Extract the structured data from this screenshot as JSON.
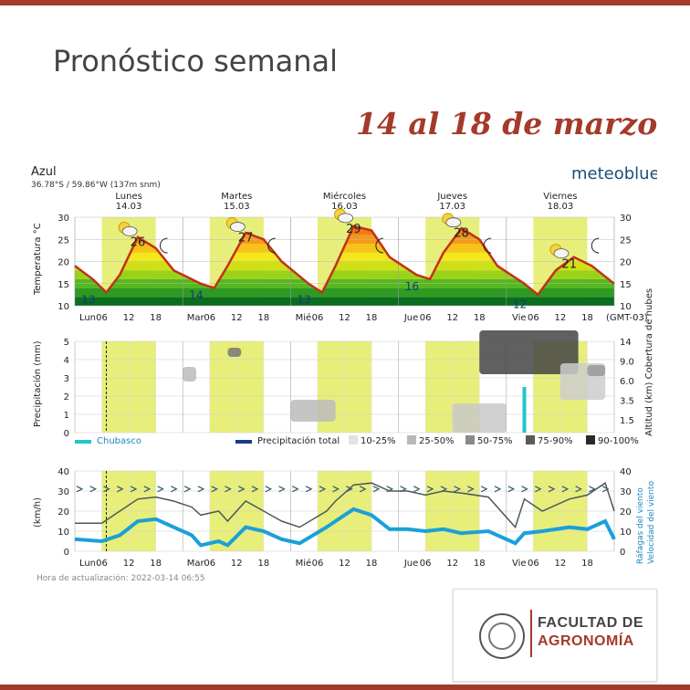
{
  "header": {
    "title": "Pronóstico semanal",
    "subtitle": "14 al 18 de marzo"
  },
  "meteogram": {
    "location": "Azul",
    "coords": "36.78°S / 59.86°W (137m snm)",
    "brand": "meteoblue",
    "timezone": "(GMT-03)",
    "update": "Hora de actualización: 2022-03-14 06:55",
    "temp_ylabel": "Temperatura °C",
    "precip_ylabel": "Precipitación (mm)",
    "cloud_ylabel": "Altitud (km) Cobertura de nubes",
    "wind_ylabel": "(km/h)",
    "wind_right_label1": "Ráfagas del viento",
    "wind_right_label2": "Velocidad del viento",
    "legend": {
      "shower": "Chubasco",
      "total": "Precipitación total",
      "c1": "10-25%",
      "c2": "25-50%",
      "c3": "50-75%",
      "c4": "75-90%",
      "c5": "90-100%"
    },
    "x_tick_labels": [
      "Lun",
      "06",
      "12",
      "18",
      "Mar",
      "06",
      "12",
      "18",
      "Mié",
      "06",
      "12",
      "18",
      "Jue",
      "06",
      "12",
      "18",
      "Vie",
      "06",
      "12",
      "18"
    ]
  },
  "chart_data": [
    {
      "type": "line",
      "title": "Temperatura",
      "ylabel": "°C",
      "ylim": [
        10,
        30
      ],
      "y_ticks": [
        10,
        15,
        20,
        25,
        30
      ],
      "days": [
        {
          "name": "Lunes",
          "date": "14.03",
          "min": 13,
          "max": 26
        },
        {
          "name": "Martes",
          "date": "15.03",
          "min": 14,
          "max": 27
        },
        {
          "name": "Miércoles",
          "date": "16.03",
          "min": 13,
          "max": 29
        },
        {
          "name": "Jueves",
          "date": "17.03",
          "min": 16,
          "max": 28
        },
        {
          "name": "Viernes",
          "date": "18.03",
          "min": 12,
          "max": 21
        }
      ],
      "x_hours": [
        0,
        4,
        7,
        10,
        14,
        18,
        22,
        28,
        31,
        34,
        38,
        42,
        46,
        52,
        55,
        58,
        62,
        66,
        70,
        76,
        79,
        82,
        86,
        90,
        94,
        100,
        103,
        107,
        111,
        115,
        120
      ],
      "values": [
        19,
        16,
        13,
        17,
        25.5,
        23,
        18,
        15,
        14,
        19,
        26.5,
        25,
        20,
        15,
        13,
        19,
        28,
        27,
        21,
        17,
        16,
        22,
        27.5,
        25,
        19,
        15,
        12.5,
        18,
        21,
        19,
        15
      ]
    },
    {
      "type": "bar",
      "title": "Precipitación",
      "ylabel": "mm",
      "ylim": [
        0,
        5
      ],
      "y_ticks": [
        0,
        1,
        2,
        3,
        4,
        5
      ],
      "right_ticks": [
        "1.5",
        "3.5",
        "6.0",
        "9.0",
        "14"
      ],
      "shower_values": [
        {
          "x_hour": 100,
          "value": 2.5
        }
      ]
    },
    {
      "type": "line",
      "title": "Viento",
      "ylabel": "km/h",
      "ylim": [
        0,
        40
      ],
      "y_ticks": [
        0,
        10,
        20,
        30,
        40
      ],
      "x_hours": [
        0,
        6,
        10,
        14,
        18,
        22,
        26,
        28,
        32,
        34,
        38,
        42,
        46,
        50,
        56,
        58,
        62,
        66,
        70,
        74,
        78,
        82,
        86,
        92,
        98,
        100,
        104,
        110,
        114,
        118,
        120
      ],
      "series": [
        {
          "name": "Ráfagas del viento",
          "color": "#4a5a5a",
          "values": [
            14,
            14,
            20,
            26,
            27,
            25,
            22,
            18,
            20,
            15,
            25,
            20,
            15,
            12,
            20,
            25,
            33,
            34,
            30,
            30,
            28,
            30,
            29,
            27,
            12,
            26,
            20,
            26,
            28,
            34,
            20
          ]
        },
        {
          "name": "Velocidad del viento",
          "color": "#1aa0d8",
          "values": [
            6,
            5,
            8,
            15,
            16,
            12,
            8,
            3,
            5,
            3,
            12,
            10,
            6,
            4,
            12,
            15,
            21,
            18,
            11,
            11,
            10,
            11,
            9,
            10,
            4,
            9,
            10,
            12,
            11,
            15,
            6
          ]
        }
      ]
    }
  ]
}
